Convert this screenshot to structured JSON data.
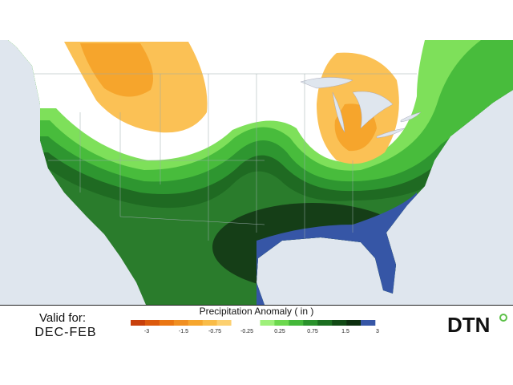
{
  "valid_label": "Valid for:",
  "period": "DEC-FEB",
  "legend": {
    "title": "Precipitation Anomaly ( in )",
    "colors": [
      "#c8400c",
      "#dc5a0e",
      "#ea7614",
      "#f08f22",
      "#f6a62e",
      "#f9bc48",
      "#fcd070",
      "#ffffff",
      "#ffffff",
      "#9ef07a",
      "#6cd84e",
      "#44b83a",
      "#2a922c",
      "#1b6e20",
      "#114a14",
      "#0c2e0e",
      "#3656a6"
    ],
    "ticks": [
      -3,
      -1.5,
      -0.75,
      -0.25,
      0.25,
      0.75,
      1.5,
      3
    ]
  },
  "logo": "DTN"
}
